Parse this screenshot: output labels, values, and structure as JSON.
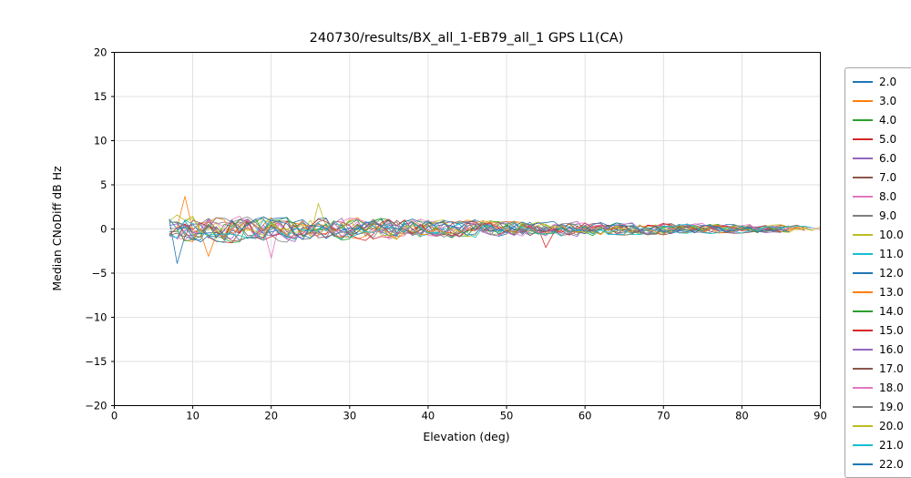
{
  "figure": {
    "background": "#ffffff",
    "spine_color": "#000000",
    "grid_color": "#d9d9d9",
    "legend_border_color": "#a6a6a6"
  },
  "chart_data": {
    "type": "line",
    "title": "240730/results/BX_all_1-EB79_all_1 GPS L1(CA)",
    "xlabel": "Elevation (deg)",
    "ylabel": "Median CNoDiff dB Hz",
    "xlim": [
      0,
      90
    ],
    "ylim": [
      -20,
      20
    ],
    "xtick_values": [
      0,
      10,
      20,
      30,
      40,
      50,
      60,
      70,
      80,
      90
    ],
    "xtick_labels": [
      "0",
      "10",
      "20",
      "30",
      "40",
      "50",
      "60",
      "70",
      "80",
      "90"
    ],
    "ytick_values": [
      -20,
      -15,
      -10,
      -5,
      0,
      5,
      10,
      15,
      20
    ],
    "ytick_labels": [
      "−20",
      "−15",
      "−10",
      "−5",
      "0",
      "5",
      "10",
      "15",
      "20"
    ],
    "grid": true,
    "legend_position": "right-outside",
    "x_start": 7,
    "x_end": 90,
    "x_step": 1,
    "noise_amp_start": 1.5,
    "noise_amp_end": 0.35,
    "palette": [
      "#1f77b4",
      "#ff7f0e",
      "#2ca02c",
      "#d62728",
      "#9467bd",
      "#8c564b",
      "#e377c2",
      "#7f7f7f",
      "#bcbd22",
      "#17becf"
    ],
    "series": [
      {
        "label": "2.0"
      },
      {
        "label": "3.0"
      },
      {
        "label": "4.0"
      },
      {
        "label": "5.0"
      },
      {
        "label": "6.0"
      },
      {
        "label": "7.0"
      },
      {
        "label": "8.0"
      },
      {
        "label": "9.0"
      },
      {
        "label": "10.0"
      },
      {
        "label": "11.0"
      },
      {
        "label": "12.0"
      },
      {
        "label": "13.0"
      },
      {
        "label": "14.0"
      },
      {
        "label": "15.0"
      },
      {
        "label": "16.0"
      },
      {
        "label": "17.0"
      },
      {
        "label": "18.0"
      },
      {
        "label": "19.0"
      },
      {
        "label": "20.0"
      },
      {
        "label": "21.0"
      },
      {
        "label": "22.0"
      }
    ],
    "spikes": [
      {
        "series_index": 0,
        "x": 8,
        "y": -3.9
      },
      {
        "series_index": 1,
        "x": 9,
        "y": 3.7
      },
      {
        "series_index": 1,
        "x": 12,
        "y": -3.1
      },
      {
        "series_index": 6,
        "x": 20,
        "y": -3.3
      },
      {
        "series_index": 8,
        "x": 26,
        "y": 2.9
      },
      {
        "series_index": 3,
        "x": 55,
        "y": -2.1
      }
    ]
  }
}
